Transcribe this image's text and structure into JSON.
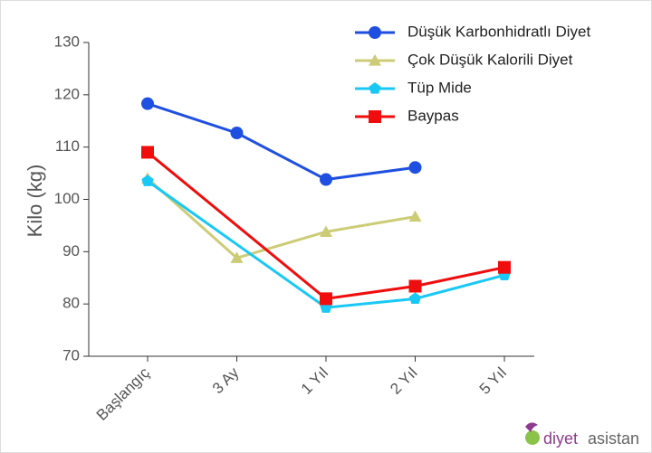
{
  "chart_data": {
    "type": "line",
    "categories": [
      "Başlangıç",
      "3 Ay",
      "1 Yıl",
      "2 Yıl",
      "5 Yıl"
    ],
    "y_label": "Kilo (kg)",
    "ylim": [
      70,
      130
    ],
    "yticks": [
      70,
      80,
      90,
      100,
      110,
      120,
      130
    ],
    "span_gaps": true,
    "series": [
      {
        "name": "Düşük Karbonhidratlı Diyet",
        "color": "#1f4fe0",
        "marker": "circle",
        "values": [
          118.3,
          112.7,
          103.8,
          106.1,
          null
        ]
      },
      {
        "name": "Çok Düşük Kalorili Diyet",
        "color": "#cccc77",
        "marker": "triangle",
        "values": [
          104,
          88.8,
          93.8,
          96.7,
          null
        ]
      },
      {
        "name": "Tüp Mide",
        "color": "#19c8f5",
        "marker": "pentagon",
        "values": [
          103.5,
          null,
          79.3,
          81,
          85.5
        ]
      },
      {
        "name": "Baypas",
        "color": "#f00d0d",
        "marker": "square",
        "values": [
          109,
          null,
          81,
          83.4,
          87
        ]
      }
    ],
    "logo": {
      "text1": "diyet",
      "text2": "asistan"
    }
  }
}
